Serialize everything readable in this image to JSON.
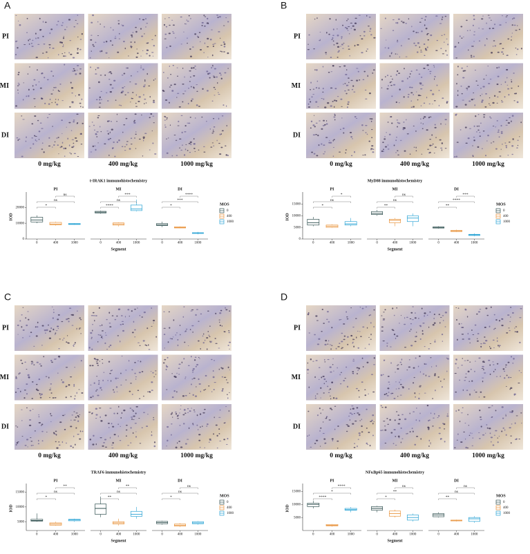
{
  "panels": [
    {
      "label": "A",
      "row_labels": [
        "PI",
        "MI",
        "DI"
      ],
      "column_labels": [
        "0 mg/kg",
        "400 mg/kg",
        "1000 mg/kg"
      ]
    },
    {
      "label": "B",
      "row_labels": [
        "PI",
        "MI",
        "DI"
      ],
      "column_labels": [
        "0 mg/kg",
        "400 mg/kg",
        "1000 mg/kg"
      ]
    },
    {
      "label": "C",
      "row_labels": [
        "PI",
        "MI",
        "DI"
      ],
      "column_labels": [
        "0 mg/kg",
        "400 mg/kg",
        "1000 mg/kg"
      ]
    },
    {
      "label": "D",
      "row_labels": [
        "PI",
        "MI",
        "DI"
      ],
      "column_labels": [
        "0 mg/kg",
        "400 mg/kg",
        "1000 mg/kg"
      ]
    }
  ],
  "chart_data": [
    {
      "type": "box",
      "title": "t-IRAK1 immunohistochemistry",
      "xlabel": "Segment",
      "ylabel": "IOD",
      "legend_title": "MOS",
      "categories": [
        "PI",
        "MI",
        "DI"
      ],
      "ylim": [
        0,
        28000
      ],
      "yticks": [
        0,
        10000,
        20000
      ],
      "series": [
        {
          "name": "0",
          "color": "#2f4f4f",
          "values": [
            [
              10000,
              10800,
              12000,
              13800,
              15000
            ],
            [
              16000,
              16500,
              17000,
              17500,
              18000
            ],
            [
              7500,
              8500,
              9000,
              9800,
              11000
            ]
          ]
        },
        {
          "name": "400",
          "color": "#e8923a",
          "values": [
            [
              8500,
              9000,
              9500,
              10500,
              11000
            ],
            [
              8000,
              8800,
              9500,
              10200,
              10500
            ],
            [
              6800,
              7000,
              7300,
              7700,
              8000
            ]
          ]
        },
        {
          "name": "1000",
          "color": "#29a3d4",
          "values": [
            [
              9000,
              9200,
              9500,
              9800,
              10000
            ],
            [
              17500,
              18000,
              19000,
              21500,
              25000
            ],
            [
              3000,
              3500,
              3800,
              4000,
              4500
            ]
          ]
        }
      ],
      "significance": [
        [
          "*",
          "ns",
          "ns"
        ],
        [
          "****",
          "ns",
          "***"
        ],
        [
          "*",
          "***",
          "****"
        ]
      ]
    },
    {
      "type": "box",
      "title": "MyD88 immunohistochemistry",
      "xlabel": "Segment",
      "ylabel": "IOD",
      "legend_title": "MOS",
      "categories": [
        "PI",
        "MI",
        "DI"
      ],
      "ylim": [
        0,
        19000
      ],
      "yticks": [
        0,
        5000,
        10000,
        15000
      ],
      "series": [
        {
          "name": "0",
          "color": "#2f4f4f",
          "values": [
            [
              5500,
              6000,
              7000,
              8500,
              9500
            ],
            [
              10000,
              10500,
              11000,
              11800,
              12500
            ],
            [
              4500,
              4700,
              5000,
              5200,
              5500
            ]
          ]
        },
        {
          "name": "400",
          "color": "#e8923a",
          "values": [
            [
              4800,
              5000,
              5500,
              6000,
              6300
            ],
            [
              5500,
              7000,
              8000,
              8500,
              9000
            ],
            [
              3000,
              3200,
              3500,
              3700,
              4000
            ]
          ]
        },
        {
          "name": "1000",
          "color": "#29a3d4",
          "values": [
            [
              5500,
              6000,
              6500,
              7500,
              9000
            ],
            [
              5500,
              7500,
              9000,
              10000,
              11000
            ],
            [
              1200,
              1500,
              1800,
              2000,
              2400
            ]
          ]
        }
      ],
      "significance": [
        [
          "*",
          "ns",
          "*"
        ],
        [
          "**",
          "ns",
          "ns"
        ],
        [
          "**",
          "****",
          "***"
        ]
      ]
    },
    {
      "type": "box",
      "title": "TRAF6 immunohistochemistry",
      "xlabel": "Segment",
      "ylabel": "IOD",
      "legend_title": "MOS",
      "categories": [
        "PI",
        "MI",
        "DI"
      ],
      "ylim": [
        2000,
        17000
      ],
      "yticks": [
        5000,
        10000,
        15000
      ],
      "series": [
        {
          "name": "0",
          "color": "#2f4f4f",
          "values": [
            [
              5000,
              5200,
              5400,
              5800,
              7800
            ],
            [
              6500,
              7500,
              9500,
              11000,
              13500
            ],
            [
              4000,
              4300,
              4700,
              5100,
              5300
            ]
          ]
        },
        {
          "name": "400",
          "color": "#e8923a",
          "values": [
            [
              3600,
              3800,
              4200,
              4600,
              5000
            ],
            [
              3700,
              4200,
              4600,
              5000,
              6000
            ],
            [
              3200,
              3500,
              3800,
              4200,
              4500
            ]
          ]
        },
        {
          "name": "1000",
          "color": "#29a3d4",
          "values": [
            [
              5000,
              5300,
              5600,
              5800,
              6000
            ],
            [
              6000,
              6800,
              7500,
              8500,
              10000
            ],
            [
              4000,
              4300,
              4600,
              5000,
              5200
            ]
          ]
        }
      ],
      "significance": [
        [
          "*",
          "ns",
          "**"
        ],
        [
          "**",
          "ns",
          "**"
        ],
        [
          "*",
          "ns",
          "ns"
        ]
      ]
    },
    {
      "type": "box",
      "title": "NFκBp65 immunohistochemistry",
      "xlabel": "Segment",
      "ylabel": "IOD",
      "legend_title": "MOS",
      "categories": [
        "PI",
        "MI",
        "DI"
      ],
      "ylim": [
        0,
        17000
      ],
      "yticks": [
        5000,
        10000,
        15000
      ],
      "series": [
        {
          "name": "0",
          "color": "#2f4f4f",
          "values": [
            [
              8500,
              9200,
              10000,
              10500,
              11500
            ],
            [
              7000,
              7800,
              8500,
              9200,
              9500
            ],
            [
              5000,
              5300,
              6000,
              6500,
              7000
            ]
          ]
        },
        {
          "name": "400",
          "color": "#e8923a",
          "values": [
            [
              1500,
              1800,
              2000,
              2300,
              2500
            ],
            [
              5000,
              5500,
              6500,
              7500,
              8000
            ],
            [
              3500,
              3700,
              3900,
              4000,
              4200
            ]
          ]
        },
        {
          "name": "1000",
          "color": "#29a3d4",
          "values": [
            [
              7000,
              7800,
              8000,
              8500,
              9000
            ],
            [
              3500,
              4000,
              5000,
              6000,
              6500
            ],
            [
              3000,
              3500,
              4500,
              5000,
              5500
            ]
          ]
        }
      ],
      "significance": [
        [
          "****",
          "*",
          "****"
        ],
        [
          "*",
          "**",
          "ns"
        ],
        [
          "**",
          "ns",
          "ns"
        ]
      ]
    }
  ]
}
